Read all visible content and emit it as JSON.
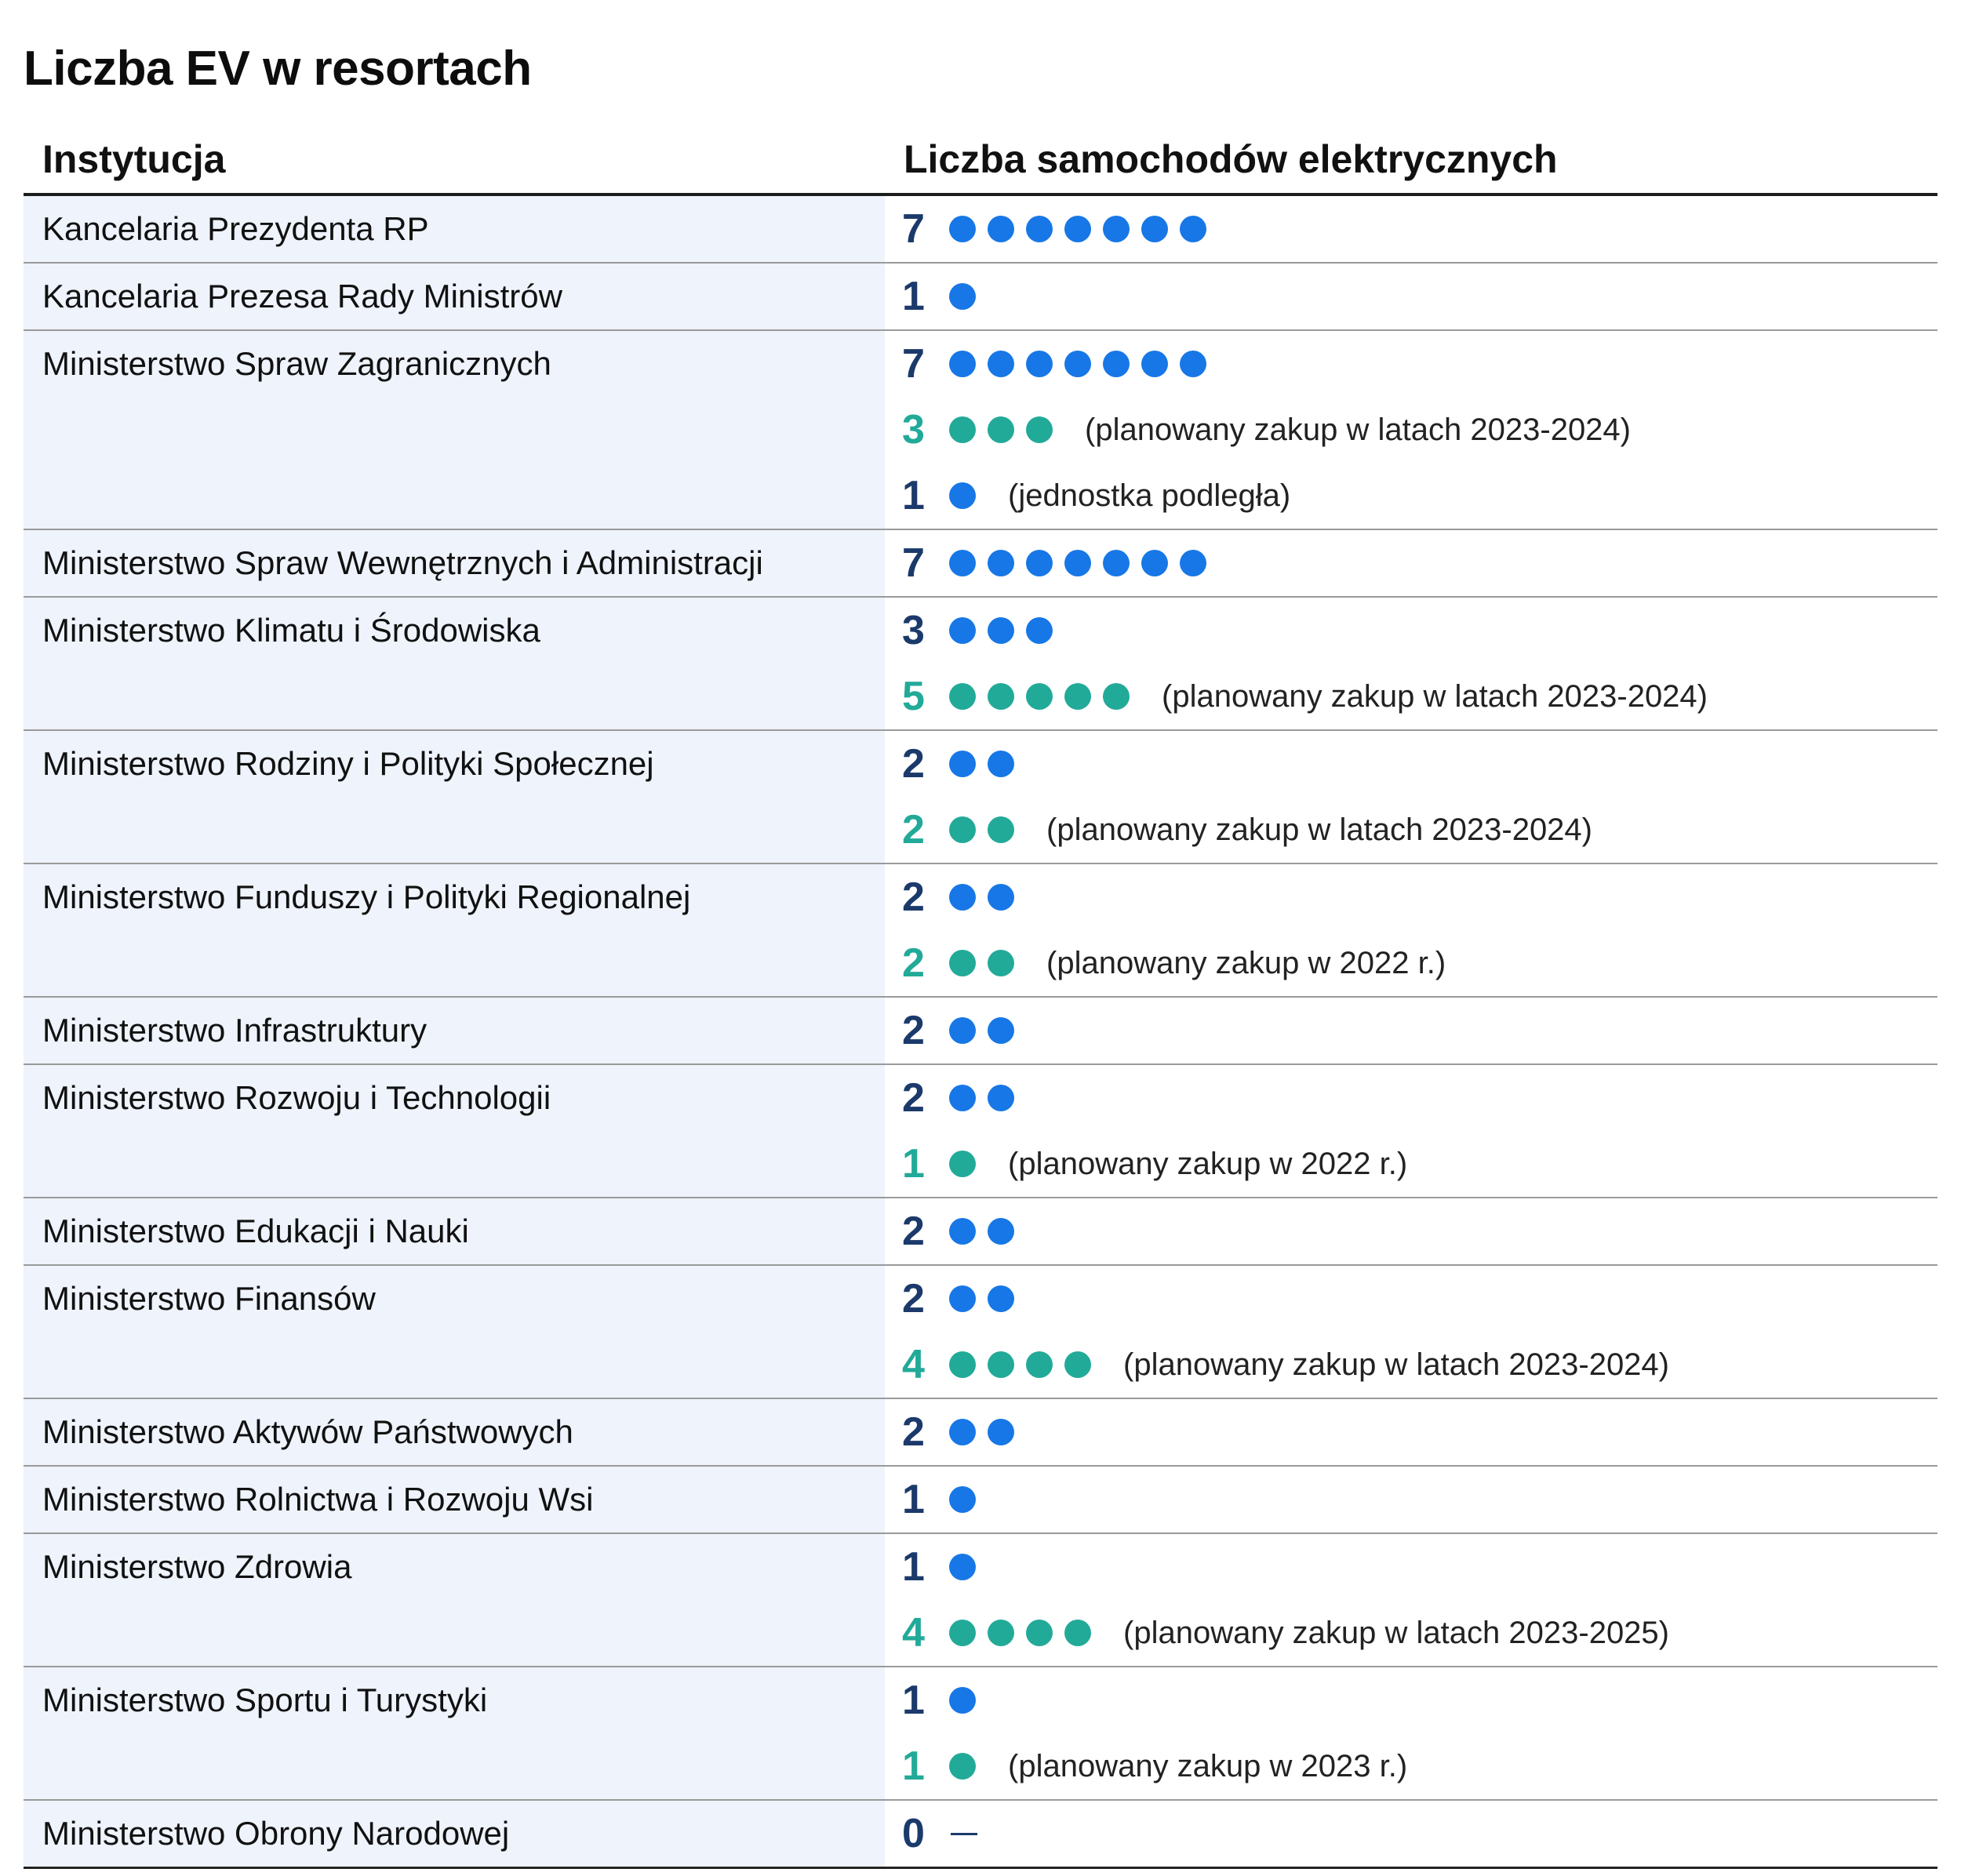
{
  "title": "Liczba EV w resortach",
  "columns": {
    "institution": "Instytucja",
    "count": "Liczba samochodów elektrycznych"
  },
  "colors": {
    "current": "#1777e6",
    "current_number": "#1b3a6b",
    "planned": "#22aa99",
    "institution_bg": "#eef3fc"
  },
  "chart_data": {
    "type": "table",
    "title": "Liczba EV w resortach",
    "columns": [
      "Instytucja",
      "Liczba samochodów elektrycznych"
    ],
    "rows": [
      {
        "institution": "Kancelaria Prezydenta RP",
        "entries": [
          {
            "value": 7,
            "kind": "current",
            "note": ""
          }
        ]
      },
      {
        "institution": "Kancelaria Prezesa Rady Ministrów",
        "entries": [
          {
            "value": 1,
            "kind": "current",
            "note": ""
          }
        ]
      },
      {
        "institution": "Ministerstwo Spraw Zagranicznych",
        "entries": [
          {
            "value": 7,
            "kind": "current",
            "note": ""
          },
          {
            "value": 3,
            "kind": "planned",
            "note": "(planowany zakup w latach 2023-2024)"
          },
          {
            "value": 1,
            "kind": "current",
            "note": "(jednostka podległa)"
          }
        ]
      },
      {
        "institution": "Ministerstwo Spraw Wewnętrznych i Administracji",
        "entries": [
          {
            "value": 7,
            "kind": "current",
            "note": ""
          }
        ]
      },
      {
        "institution": "Ministerstwo Klimatu i Środowiska",
        "entries": [
          {
            "value": 3,
            "kind": "current",
            "note": ""
          },
          {
            "value": 5,
            "kind": "planned",
            "note": "(planowany zakup w latach 2023-2024)"
          }
        ]
      },
      {
        "institution": "Ministerstwo Rodziny i Polityki Społecznej",
        "entries": [
          {
            "value": 2,
            "kind": "current",
            "note": ""
          },
          {
            "value": 2,
            "kind": "planned",
            "note": "(planowany zakup w latach 2023-2024)"
          }
        ]
      },
      {
        "institution": "Ministerstwo Funduszy i Polityki Regionalnej",
        "entries": [
          {
            "value": 2,
            "kind": "current",
            "note": ""
          },
          {
            "value": 2,
            "kind": "planned",
            "note": "(planowany zakup w 2022 r.)"
          }
        ]
      },
      {
        "institution": "Ministerstwo Infrastruktury",
        "entries": [
          {
            "value": 2,
            "kind": "current",
            "note": ""
          }
        ]
      },
      {
        "institution": "Ministerstwo Rozwoju i Technologii",
        "entries": [
          {
            "value": 2,
            "kind": "current",
            "note": ""
          },
          {
            "value": 1,
            "kind": "planned",
            "note": "(planowany zakup w 2022 r.)"
          }
        ]
      },
      {
        "institution": "Ministerstwo Edukacji i Nauki",
        "entries": [
          {
            "value": 2,
            "kind": "current",
            "note": ""
          }
        ]
      },
      {
        "institution": "Ministerstwo Finansów",
        "entries": [
          {
            "value": 2,
            "kind": "current",
            "note": ""
          },
          {
            "value": 4,
            "kind": "planned",
            "note": "(planowany zakup w latach 2023-2024)"
          }
        ]
      },
      {
        "institution": "Ministerstwo Aktywów Państwowych",
        "entries": [
          {
            "value": 2,
            "kind": "current",
            "note": ""
          }
        ]
      },
      {
        "institution": "Ministerstwo Rolnictwa i Rozwoju Wsi",
        "entries": [
          {
            "value": 1,
            "kind": "current",
            "note": ""
          }
        ]
      },
      {
        "institution": "Ministerstwo Zdrowia",
        "entries": [
          {
            "value": 1,
            "kind": "current",
            "note": ""
          },
          {
            "value": 4,
            "kind": "planned",
            "note": "(planowany zakup w latach 2023-2025)"
          }
        ]
      },
      {
        "institution": "Ministerstwo Sportu i Turystyki",
        "entries": [
          {
            "value": 1,
            "kind": "current",
            "note": ""
          },
          {
            "value": 1,
            "kind": "planned",
            "note": "(planowany zakup w 2023 r.)"
          }
        ]
      },
      {
        "institution": "Ministerstwo Obrony Narodowej",
        "entries": [
          {
            "value": 0,
            "kind": "current",
            "note": ""
          }
        ]
      }
    ]
  }
}
